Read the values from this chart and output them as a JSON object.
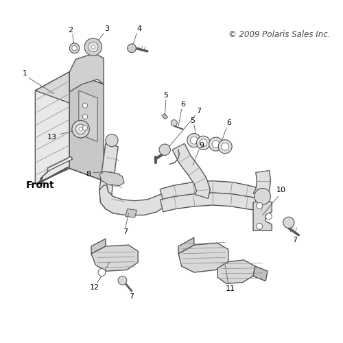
{
  "background_color": "#ffffff",
  "copyright_text": "© 2009 Polaris Sales Inc.",
  "copyright_fontsize": 8.5,
  "front_label": "Front",
  "front_fontsize": 10,
  "label_fontsize": 8,
  "gray": "#555555",
  "lgray": "#888888",
  "llgray": "#bbbbbb",
  "fill_light": "#e8e8e8",
  "fill_mid": "#d0d0d0",
  "fill_dark": "#b8b8b8"
}
